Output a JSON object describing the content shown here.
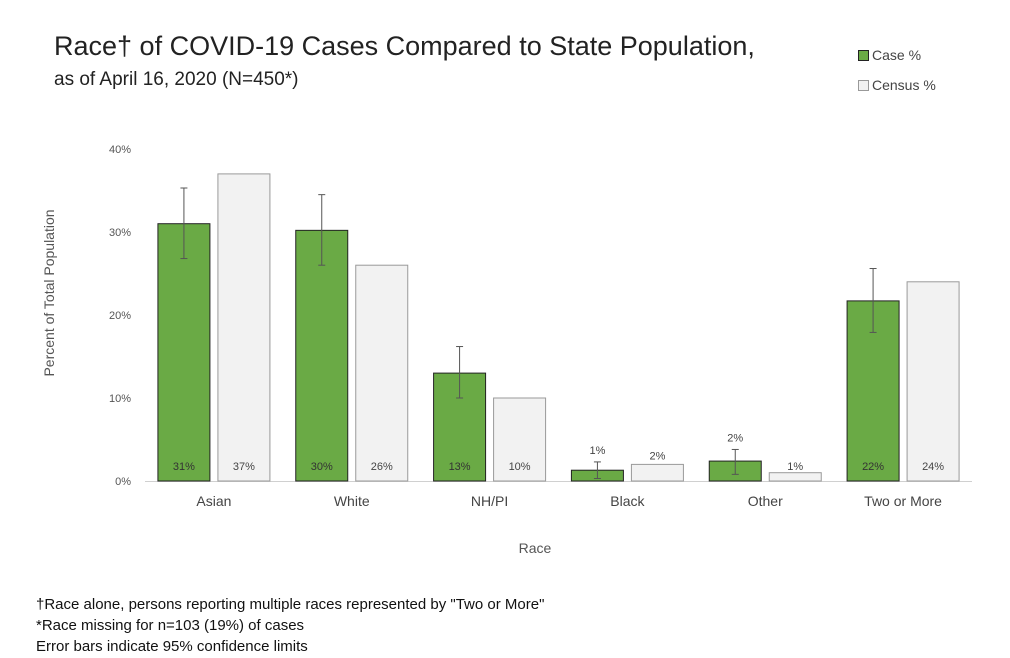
{
  "chart_data": {
    "type": "bar",
    "title": "Race† of COVID-19 Cases Compared to State Population,",
    "subtitle": "as of April 16, 2020 (N=450*)",
    "xlabel": "Race",
    "ylabel": "Percent of Total Population",
    "ylim": [
      0,
      40
    ],
    "yticks": [
      "0%",
      "10%",
      "20%",
      "30%",
      "40%"
    ],
    "ytick_values": [
      0,
      10,
      20,
      30,
      40
    ],
    "grid": false,
    "legend_position": "top-right",
    "categories": [
      "Asian",
      "White",
      "NH/PI",
      "Black",
      "Other",
      "Two or More"
    ],
    "series": [
      {
        "name": "Case %",
        "color": "#6aaa45",
        "values": [
          31,
          30.2,
          13,
          1.3,
          2.4,
          21.7
        ],
        "labels": [
          "31%",
          "30%",
          "13%",
          "1%",
          "2%",
          "22%"
        ],
        "label_inside": [
          true,
          true,
          true,
          false,
          false,
          true
        ],
        "error_low": [
          26.8,
          26,
          10,
          0.3,
          0.8,
          17.9
        ],
        "error_high": [
          35.3,
          34.5,
          16.2,
          2.3,
          3.8,
          25.6
        ]
      },
      {
        "name": "Census %",
        "color": "#f2f2f2",
        "values": [
          37,
          26,
          10,
          2,
          1,
          24
        ],
        "labels": [
          "37%",
          "26%",
          "10%",
          "2%",
          "1%",
          "24%"
        ],
        "label_inside": [
          true,
          true,
          true,
          false,
          true,
          true
        ]
      }
    ]
  },
  "footnotes": [
    "†Race alone, persons reporting  multiple races represented by \"Two or More\"",
    "*Race missing for n=103 (19%) of cases",
    "Error bars indicate 95% confidence limits"
  ]
}
